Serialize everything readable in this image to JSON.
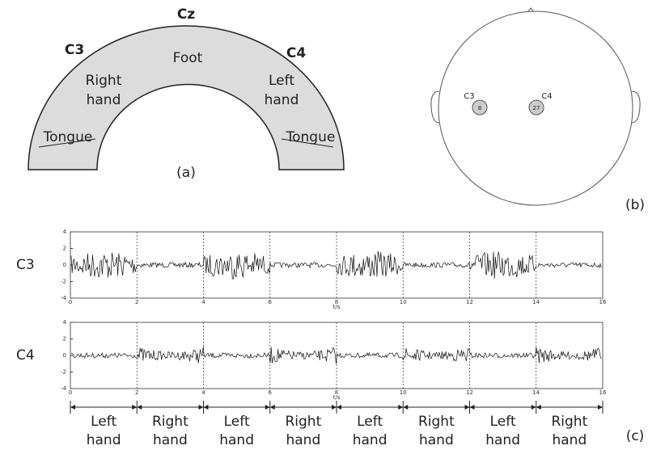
{
  "panel_a": {
    "electrodes": [
      "Cz",
      "C3",
      "C4"
    ],
    "regions": {
      "foot": "Foot",
      "right_hand": [
        "Right",
        "hand"
      ],
      "left_hand": [
        "Left",
        "hand"
      ],
      "tongue_left": "Tongue",
      "tongue_right": "Tongue"
    },
    "caption": "(a)"
  },
  "panel_b": {
    "electrodes": [
      {
        "name": "C3",
        "number": "8"
      },
      {
        "name": "C4",
        "number": "27"
      }
    ],
    "caption": "(b)"
  },
  "panel_c": {
    "caption": "(c)",
    "xlim": [
      0,
      16
    ],
    "ylim": [
      -4,
      4
    ],
    "signals": [
      {
        "name": "C3",
        "yticks": [
          4,
          2,
          0,
          -2,
          -4
        ],
        "xticks": [
          0,
          2,
          4,
          6,
          8,
          10,
          12,
          14,
          16
        ],
        "xlabel": "t/s"
      },
      {
        "name": "C4",
        "yticks": [
          4,
          2,
          0,
          -2,
          -4
        ],
        "xticks": [
          0,
          2,
          4,
          6,
          8,
          10,
          12,
          14,
          16
        ],
        "xlabel": "t/s"
      }
    ],
    "segments": [
      [
        "Left",
        "hand"
      ],
      [
        "Right",
        "hand"
      ],
      [
        "Left",
        "hand"
      ],
      [
        "Right",
        "hand"
      ],
      [
        "Left",
        "hand"
      ],
      [
        "Right",
        "hand"
      ],
      [
        "Left",
        "hand"
      ],
      [
        "Right",
        "hand"
      ]
    ]
  }
}
